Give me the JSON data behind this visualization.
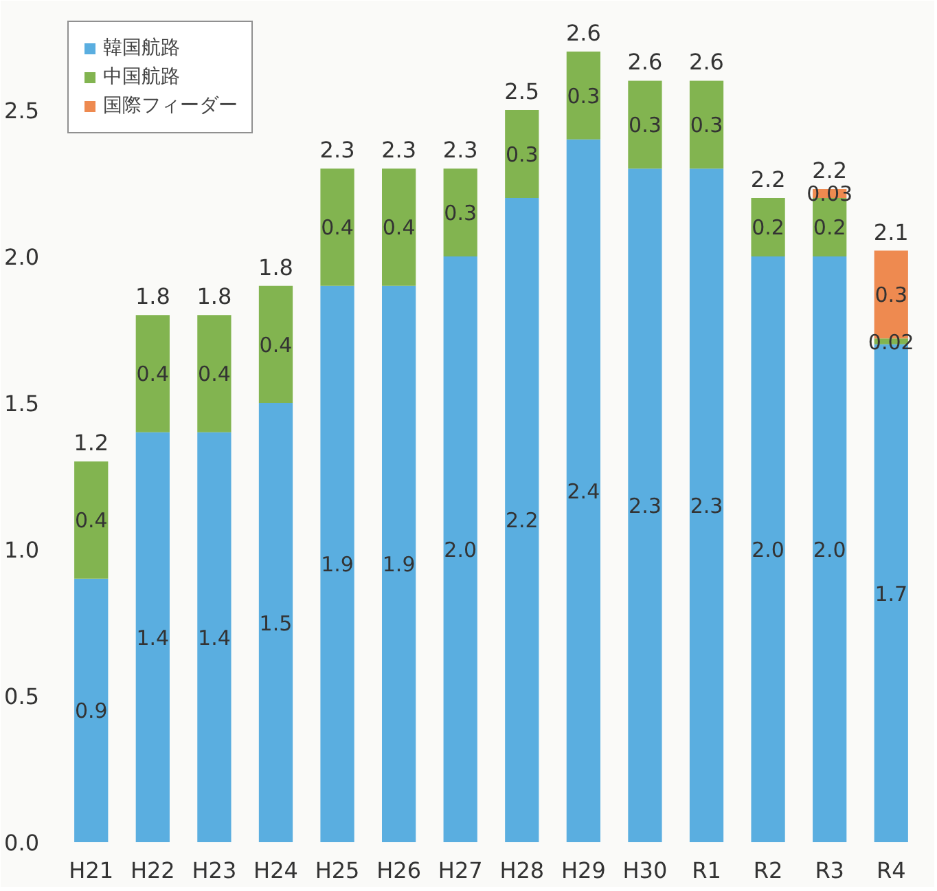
{
  "chart_data": {
    "type": "bar",
    "stacked": true,
    "categories": [
      "H21",
      "H22",
      "H23",
      "H24",
      "H25",
      "H26",
      "H27",
      "H28",
      "H29",
      "H30",
      "R1",
      "R2",
      "R3",
      "R4"
    ],
    "series": [
      {
        "name": "韓国航路",
        "color": "#5aaee0",
        "values": [
          0.9,
          1.4,
          1.4,
          1.5,
          1.9,
          1.9,
          2.0,
          2.2,
          2.4,
          2.3,
          2.3,
          2.0,
          2.0,
          1.7
        ],
        "value_labels": [
          "0.9",
          "1.4",
          "1.4",
          "1.5",
          "1.9",
          "1.9",
          "2.0",
          "2.2",
          "2.4",
          "2.3",
          "2.3",
          "2.0",
          "2.0",
          "1.7"
        ]
      },
      {
        "name": "中国航路",
        "color": "#82b450",
        "values": [
          0.4,
          0.4,
          0.4,
          0.4,
          0.4,
          0.4,
          0.3,
          0.3,
          0.3,
          0.3,
          0.3,
          0.2,
          0.2,
          0.02
        ],
        "value_labels": [
          "0.4",
          "0.4",
          "0.4",
          "0.4",
          "0.4",
          "0.4",
          "0.3",
          "0.3",
          "0.3",
          "0.3",
          "0.3",
          "0.2",
          "0.2",
          "0.02"
        ]
      },
      {
        "name": "国際フィーダー",
        "color": "#ee8a50",
        "values": [
          null,
          null,
          null,
          null,
          null,
          null,
          null,
          null,
          null,
          null,
          null,
          null,
          0.03,
          0.3
        ],
        "value_labels": [
          null,
          null,
          null,
          null,
          null,
          null,
          null,
          null,
          null,
          null,
          null,
          null,
          "0.03",
          "0.3"
        ]
      }
    ],
    "totals": [
      "1.2",
      "1.8",
      "1.8",
      "1.8",
      "2.3",
      "2.3",
      "2.3",
      "2.5",
      "2.6",
      "2.6",
      "2.6",
      "2.2",
      "2.2",
      "2.1"
    ],
    "ylim": [
      0,
      2.85
    ],
    "yticks": [
      {
        "value": 0,
        "label": "0.0"
      },
      {
        "value": 0.5,
        "label": "0.5"
      },
      {
        "value": 1,
        "label": "1.0"
      },
      {
        "value": 1.5,
        "label": "1.5"
      },
      {
        "value": 2,
        "label": "2.0"
      },
      {
        "value": 2.5,
        "label": "2.5"
      }
    ],
    "grid": false,
    "legend": "top left"
  }
}
